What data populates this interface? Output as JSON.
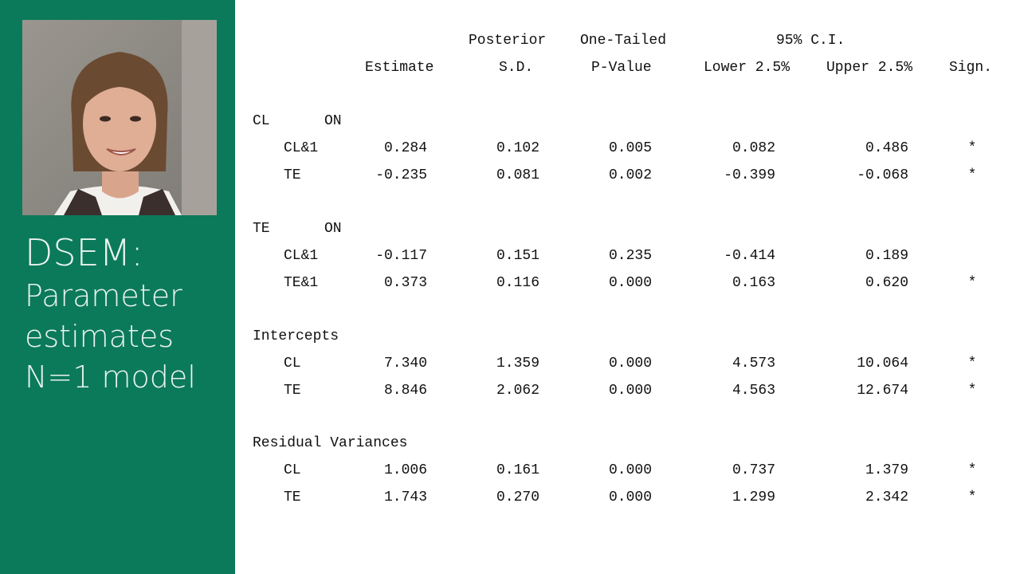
{
  "sidebar": {
    "title_line1": "DSEM:",
    "title_line2": "Parameter",
    "title_line3": "estimates",
    "title_line4": "N=1 model",
    "background_color": "#0b7a5a"
  },
  "table": {
    "header_row1": {
      "posterior": "Posterior",
      "one_tailed": "One-Tailed",
      "ci": "95% C.I."
    },
    "header_row2": {
      "estimate": "Estimate",
      "sd": "S.D.",
      "pvalue": "P-Value",
      "lower": "Lower 2.5%",
      "upper": "Upper 2.5%",
      "sign": "Sign."
    },
    "sections": [
      {
        "label": "CL",
        "label2": "ON",
        "rows": [
          {
            "name": "CL&1",
            "estimate": "0.284",
            "sd": "0.102",
            "p": "0.005",
            "lower": "0.082",
            "upper": "0.486",
            "sign": "*"
          },
          {
            "name": "TE",
            "estimate": "-0.235",
            "sd": "0.081",
            "p": "0.002",
            "lower": "-0.399",
            "upper": "-0.068",
            "sign": "*"
          }
        ]
      },
      {
        "label": "TE",
        "label2": "ON",
        "rows": [
          {
            "name": "CL&1",
            "estimate": "-0.117",
            "sd": "0.151",
            "p": "0.235",
            "lower": "-0.414",
            "upper": "0.189",
            "sign": ""
          },
          {
            "name": "TE&1",
            "estimate": "0.373",
            "sd": "0.116",
            "p": "0.000",
            "lower": "0.163",
            "upper": "0.620",
            "sign": "*"
          }
        ]
      },
      {
        "label": "Intercepts",
        "label2": "",
        "rows": [
          {
            "name": "CL",
            "estimate": "7.340",
            "sd": "1.359",
            "p": "0.000",
            "lower": "4.573",
            "upper": "10.064",
            "sign": "*"
          },
          {
            "name": "TE",
            "estimate": "8.846",
            "sd": "2.062",
            "p": "0.000",
            "lower": "4.563",
            "upper": "12.674",
            "sign": "*"
          }
        ]
      },
      {
        "label": "Residual Variances",
        "label2": "",
        "rows": [
          {
            "name": "CL",
            "estimate": "1.006",
            "sd": "0.161",
            "p": "0.000",
            "lower": "0.737",
            "upper": "1.379",
            "sign": "*"
          },
          {
            "name": "TE",
            "estimate": "1.743",
            "sd": "0.270",
            "p": "0.000",
            "lower": "1.299",
            "upper": "2.342",
            "sign": "*"
          }
        ]
      }
    ]
  }
}
